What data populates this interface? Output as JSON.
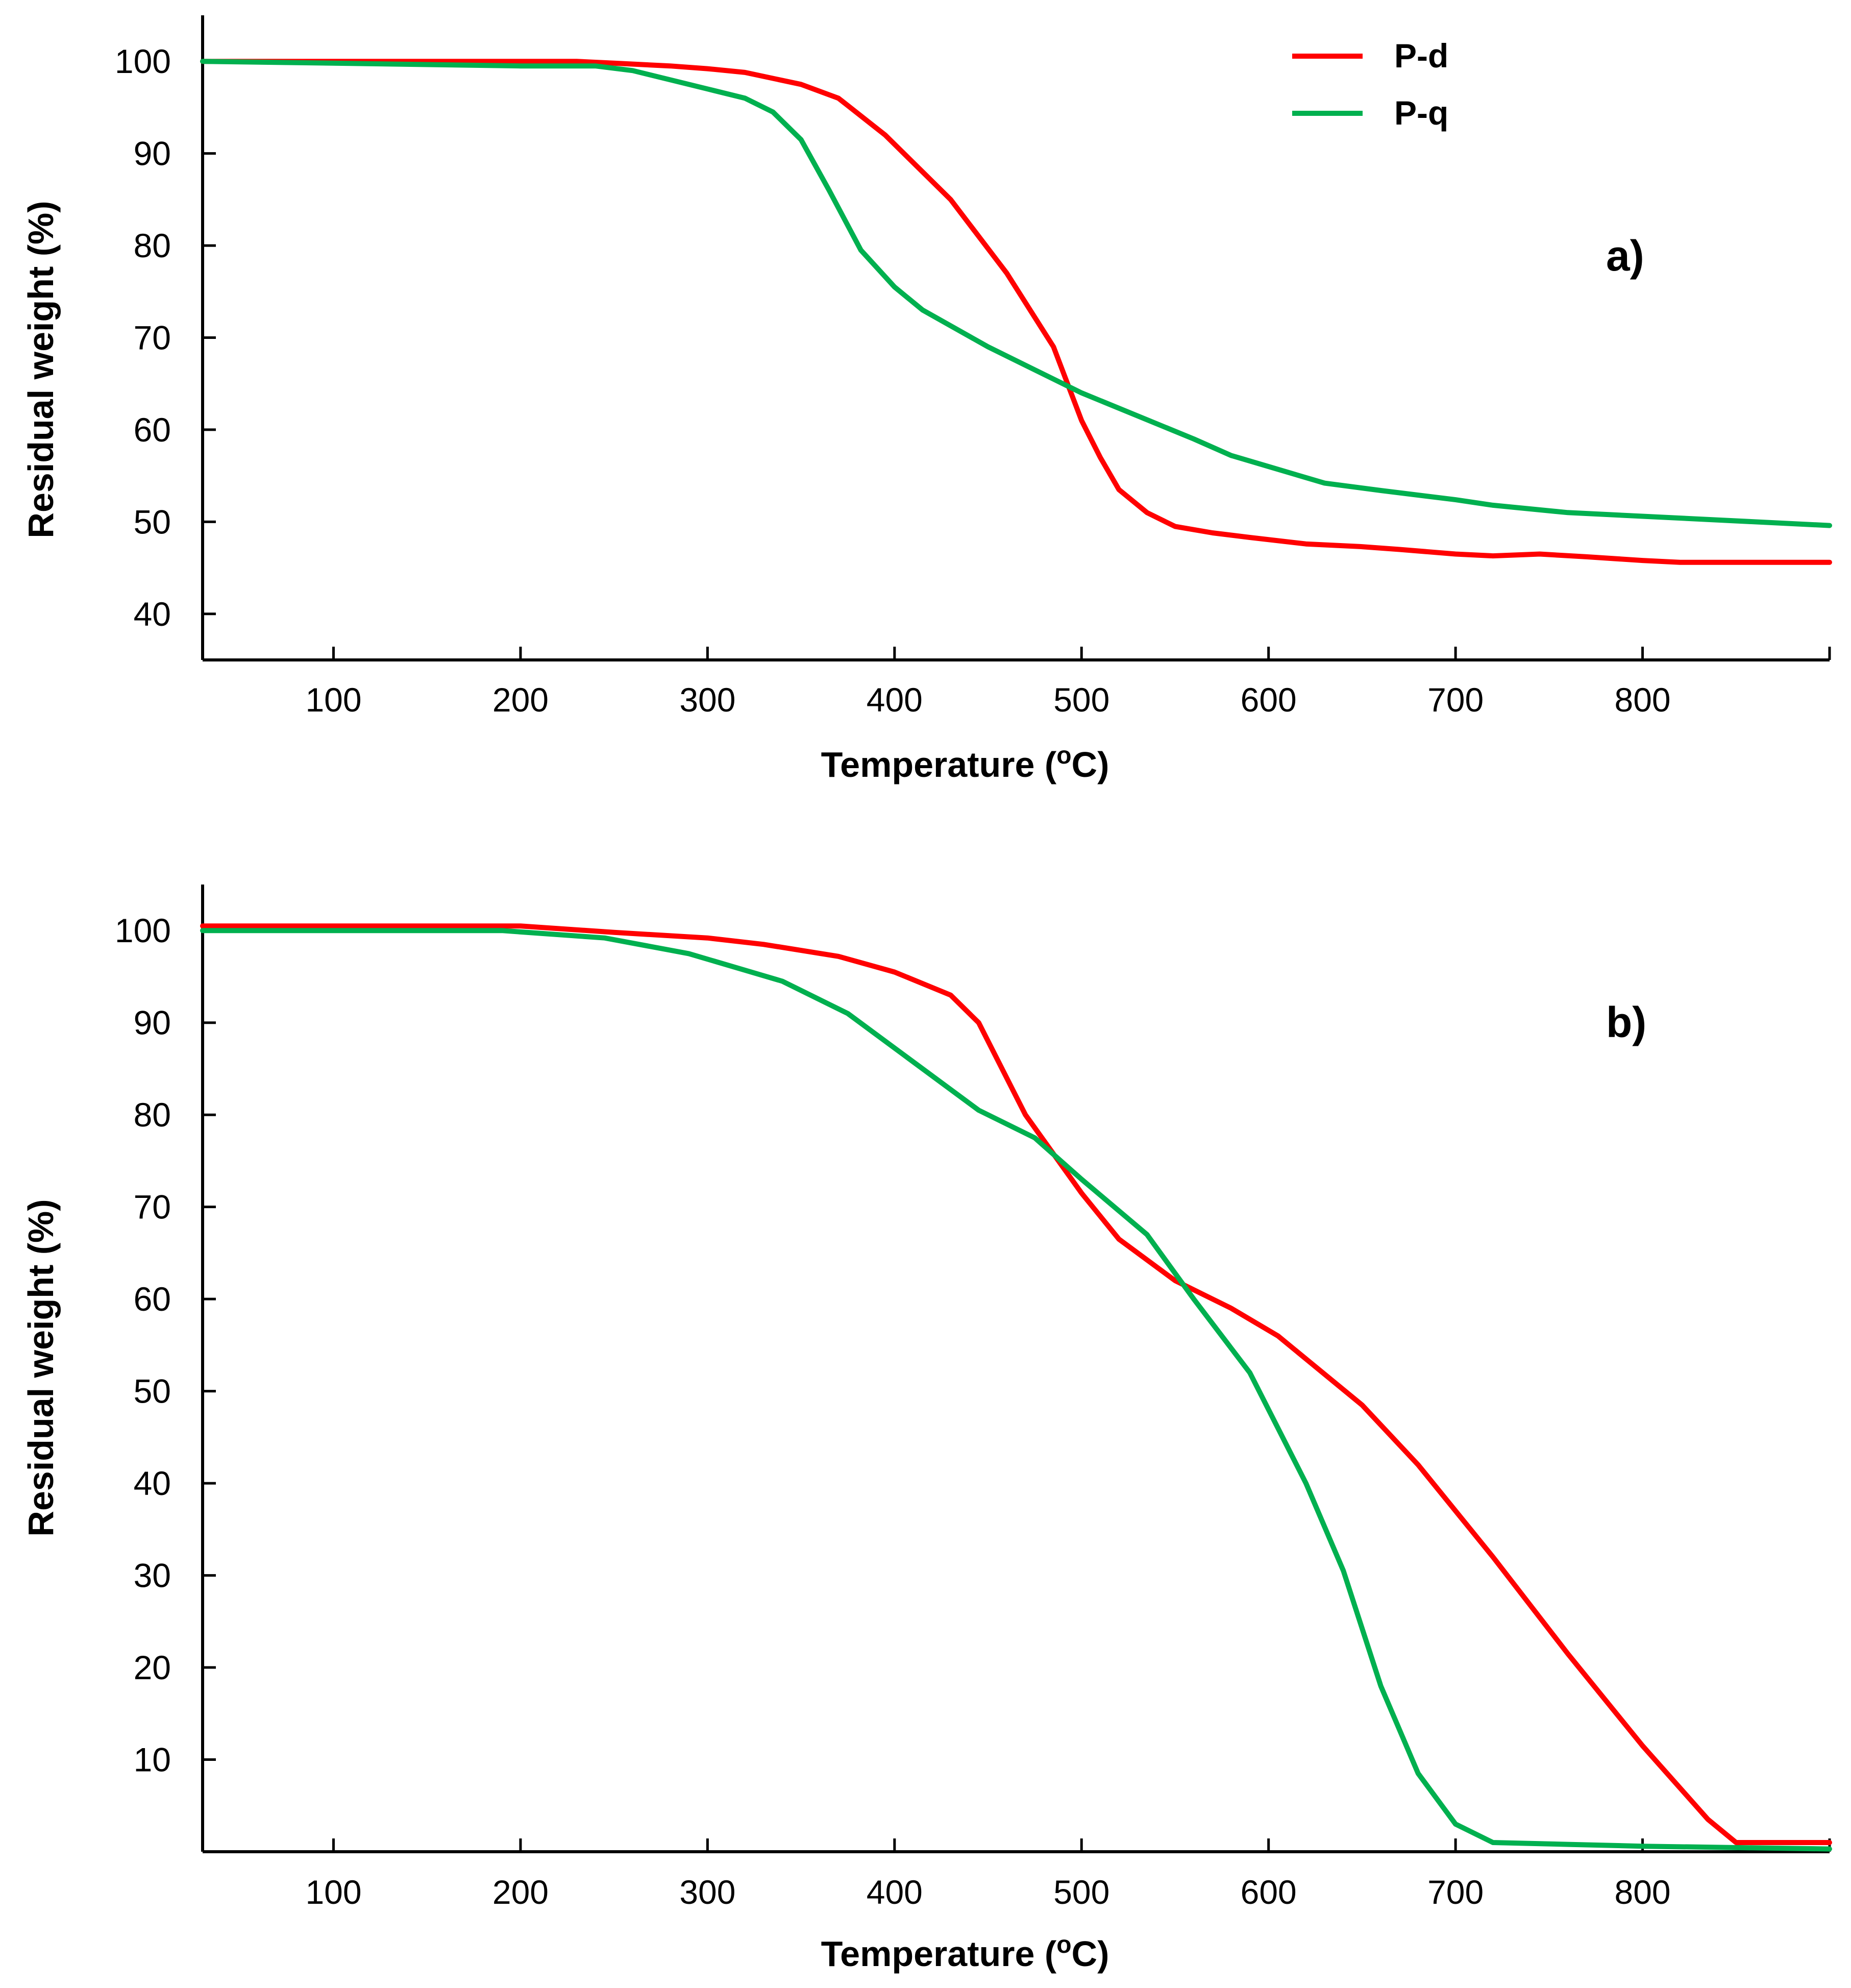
{
  "chart_data": [
    {
      "type": "line",
      "panel_label": "a)",
      "xlabel": "Temperature (",
      "xlabel_degree": "o",
      "xlabel_unit": "C)",
      "ylabel": "Residual weight (%)",
      "xlim": [
        30,
        900
      ],
      "ylim": [
        35,
        105
      ],
      "xticks": [
        100,
        200,
        300,
        400,
        500,
        600,
        700,
        800
      ],
      "yticks": [
        40,
        50,
        60,
        70,
        80,
        90,
        100
      ],
      "legend": {
        "position": "top-right",
        "entries": [
          "P-d",
          "P-q"
        ]
      },
      "series": [
        {
          "name": "P-d",
          "color": "#ff0000",
          "x": [
            30,
            100,
            200,
            230,
            250,
            280,
            300,
            320,
            350,
            370,
            395,
            430,
            460,
            485,
            500,
            510,
            520,
            535,
            550,
            570,
            590,
            620,
            650,
            670,
            700,
            720,
            745,
            770,
            800,
            820,
            850,
            900
          ],
          "y": [
            100.0,
            100.0,
            100.0,
            100.0,
            99.8,
            99.5,
            99.2,
            98.8,
            97.5,
            96.0,
            92.0,
            85.0,
            77.0,
            69.0,
            61.0,
            57.0,
            53.5,
            51.0,
            49.5,
            48.8,
            48.3,
            47.6,
            47.3,
            47.0,
            46.5,
            46.3,
            46.5,
            46.2,
            45.8,
            45.6,
            45.6,
            45.6
          ]
        },
        {
          "name": "P-q",
          "color": "#00b04f",
          "x": [
            30,
            100,
            200,
            240,
            260,
            280,
            300,
            320,
            335,
            350,
            365,
            382,
            400,
            415,
            450,
            500,
            530,
            560,
            580,
            600,
            630,
            660,
            700,
            720,
            760,
            800,
            900
          ],
          "y": [
            100.0,
            99.8,
            99.5,
            99.5,
            99.0,
            98.0,
            97.0,
            96.0,
            94.5,
            91.5,
            86.0,
            79.5,
            75.5,
            73.0,
            69.0,
            64.0,
            61.5,
            59.0,
            57.2,
            56.0,
            54.2,
            53.4,
            52.4,
            51.8,
            51.0,
            50.6,
            49.6
          ]
        }
      ]
    },
    {
      "type": "line",
      "panel_label": "b)",
      "xlabel": "Temperature (",
      "xlabel_degree": "o",
      "xlabel_unit": "C)",
      "ylabel": "Residual weight (%)",
      "xlim": [
        30,
        900
      ],
      "ylim": [
        0,
        105
      ],
      "xticks": [
        100,
        200,
        300,
        400,
        500,
        600,
        700,
        800
      ],
      "yticks": [
        10,
        20,
        30,
        40,
        50,
        60,
        70,
        80,
        90,
        100
      ],
      "series": [
        {
          "name": "P-d",
          "color": "#ff0000",
          "x": [
            30,
            100,
            200,
            250,
            300,
            330,
            370,
            400,
            430,
            445,
            470,
            500,
            520,
            550,
            580,
            605,
            650,
            680,
            720,
            760,
            800,
            835,
            850,
            900
          ],
          "y": [
            100.5,
            100.5,
            100.5,
            99.8,
            99.2,
            98.5,
            97.2,
            95.5,
            93.0,
            90.0,
            80.0,
            71.5,
            66.5,
            62.0,
            59.0,
            56.0,
            48.5,
            42.0,
            32.0,
            21.5,
            11.5,
            3.5,
            1.0,
            1.0
          ]
        },
        {
          "name": "P-q",
          "color": "#00b04f",
          "x": [
            30,
            100,
            190,
            245,
            290,
            340,
            375,
            405,
            445,
            475,
            500,
            535,
            560,
            590,
            620,
            640,
            660,
            680,
            700,
            720,
            760,
            800,
            900
          ],
          "y": [
            100.0,
            100.0,
            100.0,
            99.2,
            97.5,
            94.5,
            91.0,
            86.5,
            80.5,
            77.5,
            73.0,
            67.0,
            60.0,
            52.0,
            40.0,
            30.5,
            18.0,
            8.5,
            3.0,
            1.0,
            0.8,
            0.6,
            0.3
          ]
        }
      ]
    }
  ]
}
